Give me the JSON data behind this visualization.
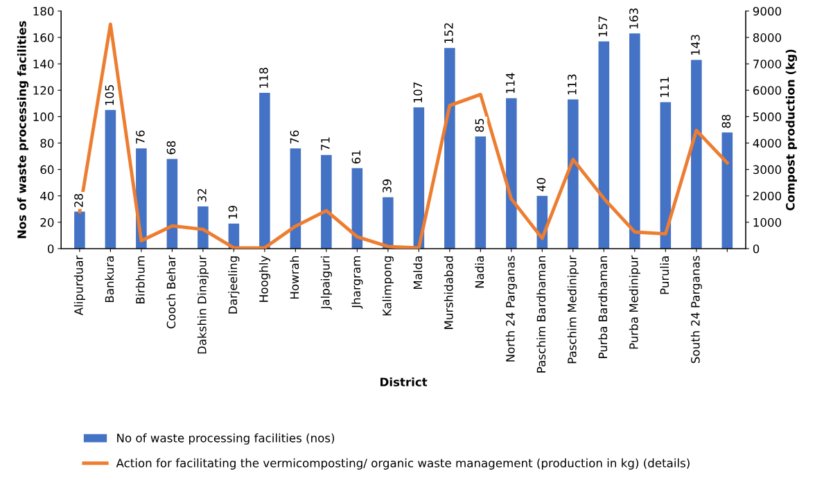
{
  "chart_data": {
    "type": "bar",
    "xlabel": "District",
    "ylabel": "Nos of waste processing facilities",
    "y2label": "Compost production (kg)",
    "categories": [
      "Alipurduar",
      "Bankura",
      "Birbhum",
      "Cooch Behar",
      "Dakshin Dinajpur",
      "Darjeeling",
      "Hooghly",
      "Howrah",
      "Jalpaiguri",
      "Jhargram",
      "Kalimpong",
      "Malda",
      "Murshidabad",
      "Nadia",
      "North 24 Parganas",
      "Paschim Bardhaman",
      "Paschim Medinipur",
      "Purba Bardhaman",
      "Purba Medinipur",
      "Purulia",
      "South 24 Parganas",
      null
    ],
    "series": [
      {
        "name": "No of waste processing facilities (nos)",
        "color": "#4472c4",
        "values": [
          28,
          105,
          76,
          68,
          32,
          19,
          118,
          76,
          71,
          61,
          39,
          107,
          152,
          85,
          114,
          40,
          113,
          157,
          163,
          111,
          143,
          88
        ],
        "value_labels": [
          "28",
          "105",
          "76",
          "68",
          "32",
          "19",
          "118",
          "76",
          "71",
          "61",
          "39",
          "107",
          "152",
          "85",
          "114",
          "40",
          "113",
          "157",
          "163",
          "111",
          "143",
          "88"
        ]
      },
      {
        "name": "Action for facilitating the vermicomposting/ organic waste management (production in kg) (details)",
        "type": "line",
        "axis": "y2",
        "color": "#ed7d31",
        "values": [
          1400,
          8500,
          300,
          860,
          730,
          30,
          30,
          850,
          1440,
          450,
          80,
          30,
          5420,
          5840,
          1880,
          390,
          3380,
          1900,
          630,
          560,
          4480,
          3250
        ]
      }
    ],
    "ylim": [
      0,
      180
    ],
    "yticks": [
      0,
      20,
      40,
      60,
      80,
      100,
      120,
      140,
      160,
      180
    ],
    "y2lim": [
      0,
      9000
    ],
    "y2ticks": [
      0,
      1000,
      2000,
      3000,
      4000,
      5000,
      6000,
      7000,
      8000,
      9000
    ],
    "grid": false,
    "legend": "bottom",
    "marker": "none",
    "line_style": "solid"
  }
}
